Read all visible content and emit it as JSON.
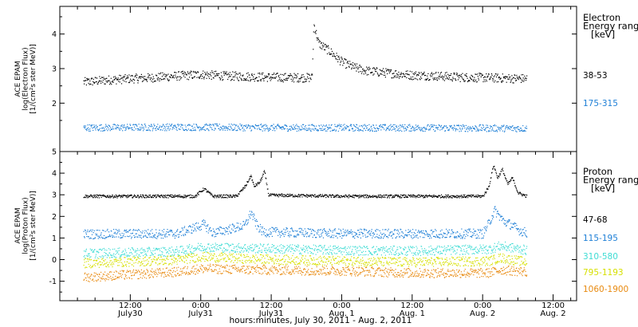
{
  "x_axis": {
    "label": "hours:minutes, July 30, 2011 - Aug. 2, 2011",
    "ticks": [
      {
        "t": 12,
        "time": "12:00",
        "date": "July30"
      },
      {
        "t": 24,
        "time": "0:00",
        "date": "July31"
      },
      {
        "t": 36,
        "time": "12:00",
        "date": "July31"
      },
      {
        "t": 48,
        "time": "0:00",
        "date": "Aug. 1"
      },
      {
        "t": 60,
        "time": "12:00",
        "date": "Aug. 1"
      },
      {
        "t": 72,
        "time": "0:00",
        "date": "Aug. 2"
      },
      {
        "t": 84,
        "time": "12:00",
        "date": "Aug. 2"
      }
    ]
  },
  "colors": {
    "black": "#000000",
    "blue": "#1e7fd6",
    "cyan": "#3fdcd4",
    "yellow": "#d6e000",
    "orange": "#e88a10",
    "axes": "#000000"
  },
  "chart_data": [
    {
      "type": "scatter",
      "panel": "electron",
      "ylabel_lines": [
        "ACE EPAM",
        "log(Electron Flux)",
        "[1/(cm²s ster MeV)]"
      ],
      "ylim": [
        0.6,
        4.8
      ],
      "yticks": [
        2,
        3,
        4
      ],
      "legend_title": [
        "Electron",
        "Energy range",
        "[keV]"
      ],
      "legend_placement": "right",
      "x_unit": "hours since July 30, 2011 0:00 UT",
      "series": [
        {
          "name": "38-53",
          "color": "#000000",
          "points": [
            [
              4,
              2.62
            ],
            [
              8,
              2.68
            ],
            [
              12,
              2.72
            ],
            [
              16,
              2.75
            ],
            [
              20,
              2.8
            ],
            [
              24,
              2.84
            ],
            [
              28,
              2.8
            ],
            [
              32,
              2.78
            ],
            [
              36,
              2.76
            ],
            [
              40,
              2.75
            ],
            [
              42.9,
              2.75
            ],
            [
              43.2,
              4.3
            ],
            [
              44,
              3.75
            ],
            [
              46,
              3.5
            ],
            [
              48,
              3.2
            ],
            [
              50,
              3.05
            ],
            [
              52,
              2.95
            ],
            [
              56,
              2.88
            ],
            [
              60,
              2.82
            ],
            [
              64,
              2.8
            ],
            [
              68,
              2.76
            ],
            [
              72,
              2.75
            ],
            [
              76,
              2.73
            ],
            [
              79.5,
              2.72
            ]
          ]
        },
        {
          "name": "175-315",
          "color": "#1e7fd6",
          "points": [
            [
              4,
              1.3
            ],
            [
              20,
              1.32
            ],
            [
              40,
              1.3
            ],
            [
              60,
              1.3
            ],
            [
              79.5,
              1.28
            ]
          ]
        }
      ]
    },
    {
      "type": "scatter",
      "panel": "proton",
      "ylabel_lines": [
        "ACE EPAM",
        "log(Proton Flux)",
        "[1/(cm²s ster MeV)]"
      ],
      "ylim": [
        -1.9,
        5.0
      ],
      "yticks": [
        -1,
        0,
        1,
        2,
        3,
        4,
        5
      ],
      "legend_title": [
        "Proton",
        "Energy range",
        "[keV]"
      ],
      "legend_placement": "right",
      "x_unit": "hours since July 30, 2011 0:00 UT",
      "series": [
        {
          "name": "47-68",
          "color": "#000000",
          "points": [
            [
              4,
              2.95
            ],
            [
              23,
              2.95
            ],
            [
              24.5,
              3.3
            ],
            [
              26,
              2.95
            ],
            [
              30,
              2.95
            ],
            [
              31.5,
              3.4
            ],
            [
              32.5,
              3.9
            ],
            [
              33,
              3.4
            ],
            [
              34,
              3.6
            ],
            [
              34.8,
              4.1
            ],
            [
              35.5,
              3.0
            ],
            [
              48,
              2.95
            ],
            [
              60,
              2.95
            ],
            [
              72,
              2.95
            ],
            [
              73,
              3.4
            ],
            [
              73.8,
              4.4
            ],
            [
              74.5,
              3.8
            ],
            [
              75.3,
              4.2
            ],
            [
              76.2,
              3.5
            ],
            [
              77,
              3.8
            ],
            [
              78,
              3.1
            ],
            [
              79.5,
              2.95
            ]
          ]
        },
        {
          "name": "115-195",
          "color": "#1e7fd6",
          "points": [
            [
              4,
              1.2
            ],
            [
              20,
              1.22
            ],
            [
              24.5,
              1.65
            ],
            [
              26,
              1.25
            ],
            [
              31.5,
              1.6
            ],
            [
              32.5,
              2.2
            ],
            [
              33.5,
              1.6
            ],
            [
              34.5,
              1.3
            ],
            [
              48,
              1.22
            ],
            [
              60,
              1.22
            ],
            [
              72,
              1.22
            ],
            [
              73,
              1.7
            ],
            [
              74,
              2.3
            ],
            [
              75.5,
              1.8
            ],
            [
              77,
              1.6
            ],
            [
              78,
              1.4
            ],
            [
              79.5,
              1.25
            ]
          ]
        },
        {
          "name": "310-580",
          "color": "#3fdcd4",
          "points": [
            [
              4,
              0.3
            ],
            [
              20,
              0.4
            ],
            [
              24,
              0.6
            ],
            [
              32,
              0.55
            ],
            [
              48,
              0.45
            ],
            [
              60,
              0.42
            ],
            [
              73,
              0.5
            ],
            [
              75,
              0.65
            ],
            [
              79.5,
              0.45
            ]
          ]
        },
        {
          "name": "795-1193",
          "color": "#d6e000",
          "points": [
            [
              4,
              -0.15
            ],
            [
              20,
              0.0
            ],
            [
              24,
              0.15
            ],
            [
              32,
              0.05
            ],
            [
              48,
              -0.05
            ],
            [
              60,
              -0.1
            ],
            [
              73,
              -0.05
            ],
            [
              75,
              0.1
            ],
            [
              79.5,
              -0.1
            ]
          ]
        },
        {
          "name": "1060-1900",
          "color": "#e88a10",
          "points": [
            [
              4,
              -0.8
            ],
            [
              20,
              -0.55
            ],
            [
              24,
              -0.4
            ],
            [
              32,
              -0.45
            ],
            [
              48,
              -0.5
            ],
            [
              60,
              -0.6
            ],
            [
              73,
              -0.6
            ],
            [
              75,
              -0.45
            ],
            [
              79.5,
              -0.55
            ]
          ]
        }
      ]
    }
  ]
}
